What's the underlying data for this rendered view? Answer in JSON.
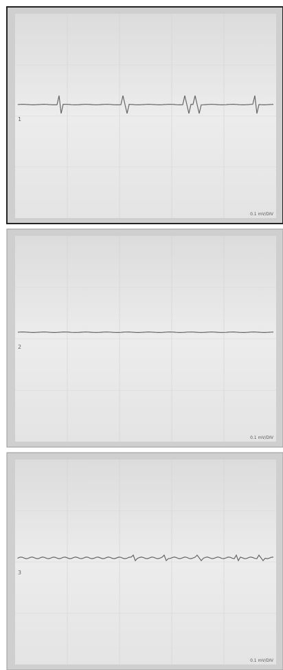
{
  "panels": [
    {
      "channel": "1",
      "scale": "0.1 mV/DIV"
    },
    {
      "channel": "2",
      "scale": "0.1 mV/DIV"
    },
    {
      "channel": "3",
      "scale": "0.1 mV/DIV"
    }
  ]
}
